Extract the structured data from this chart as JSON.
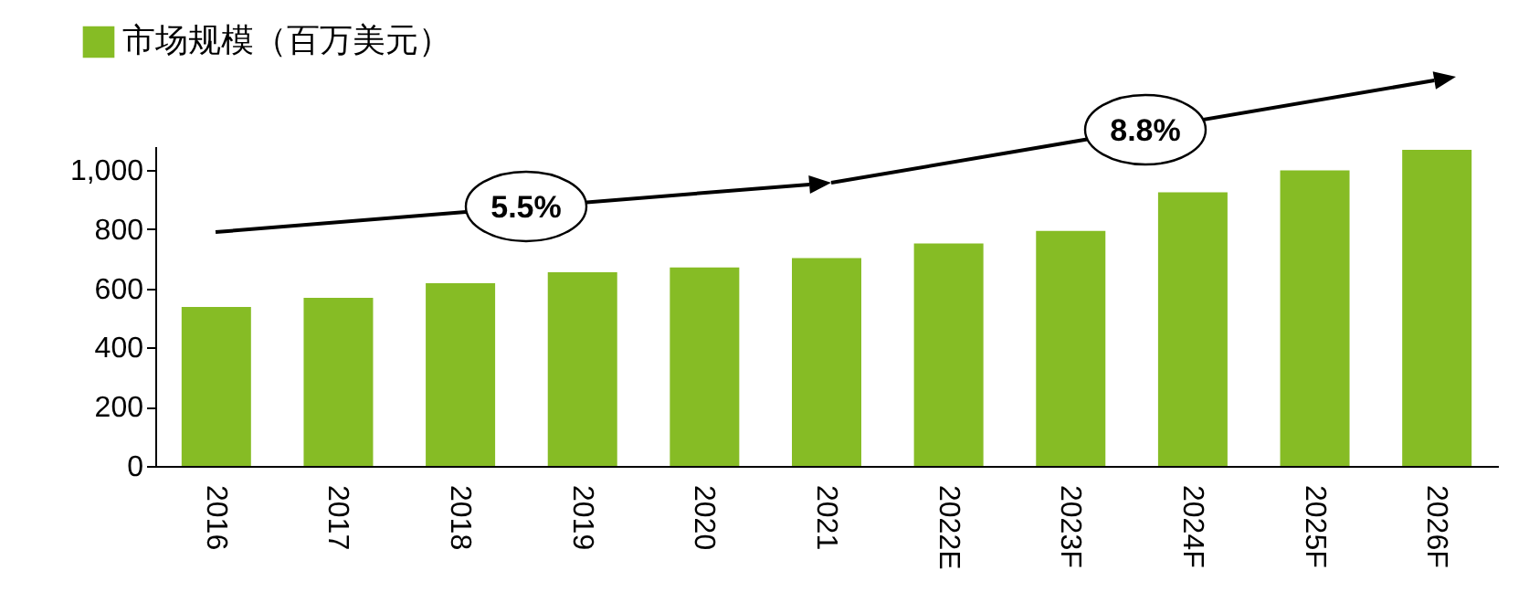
{
  "chart_data": {
    "type": "bar",
    "categories": [
      "2016",
      "2017",
      "2018",
      "2019",
      "2020",
      "2021",
      "2022E",
      "2023F",
      "2024F",
      "2025F",
      "2026F"
    ],
    "series": [
      {
        "name": "市场规模（百万美元）",
        "color": "#86bc25",
        "values": [
          537,
          568,
          617,
          654,
          670,
          702,
          751,
          794,
          924,
          998,
          1068
        ]
      }
    ],
    "ylim": [
      0,
      1080
    ],
    "yticks": [
      0,
      200,
      400,
      600,
      800,
      {
        "value": 1000,
        "label": "1,000"
      }
    ],
    "annotations": [
      "5.5%",
      "8.8%"
    ],
    "legend": "top left",
    "grid": false
  }
}
